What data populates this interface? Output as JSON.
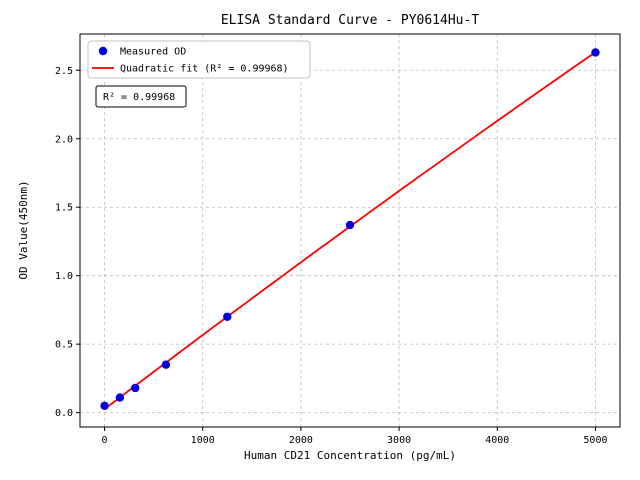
{
  "chart_data": {
    "type": "scatter",
    "title": "ELISA Standard Curve - PY0614Hu-T",
    "xlabel": "Human CD21 Concentration (pg/mL)",
    "ylabel": "OD Value(450nm)",
    "xlim": [
      -250,
      5250
    ],
    "ylim": [
      -0.105,
      2.765
    ],
    "xticks": [
      0,
      1000,
      2000,
      3000,
      4000,
      5000
    ],
    "yticks": [
      0.0,
      0.5,
      1.0,
      1.5,
      2.0,
      2.5
    ],
    "grid": true,
    "grid_style": "dashed",
    "legend_position": "upper-left",
    "series": [
      {
        "name": "Measured OD",
        "type": "scatter",
        "color": "#0000dd",
        "x": [
          0,
          156.25,
          312.5,
          625,
          1250,
          2500,
          5000
        ],
        "y": [
          0.05,
          0.11,
          0.18,
          0.35,
          0.7,
          1.37,
          2.63
        ]
      },
      {
        "name": "Quadratic fit (R² = 0.99968)",
        "type": "line",
        "color": "#ff0000",
        "fit": {
          "a": 0.026,
          "b": 0.00054545,
          "c": -4.835e-09,
          "x_range": [
            0,
            5000
          ]
        }
      }
    ],
    "annotation": "R² = 0.99968",
    "r_squared": "0.99968"
  },
  "colors": {
    "points": "#0000dd",
    "fit_line": "#ff0000",
    "grid": "#bbbbbb",
    "axes_frame": "#000000",
    "legend_border": "#c0c0c0",
    "annotation_border": "#000000"
  }
}
